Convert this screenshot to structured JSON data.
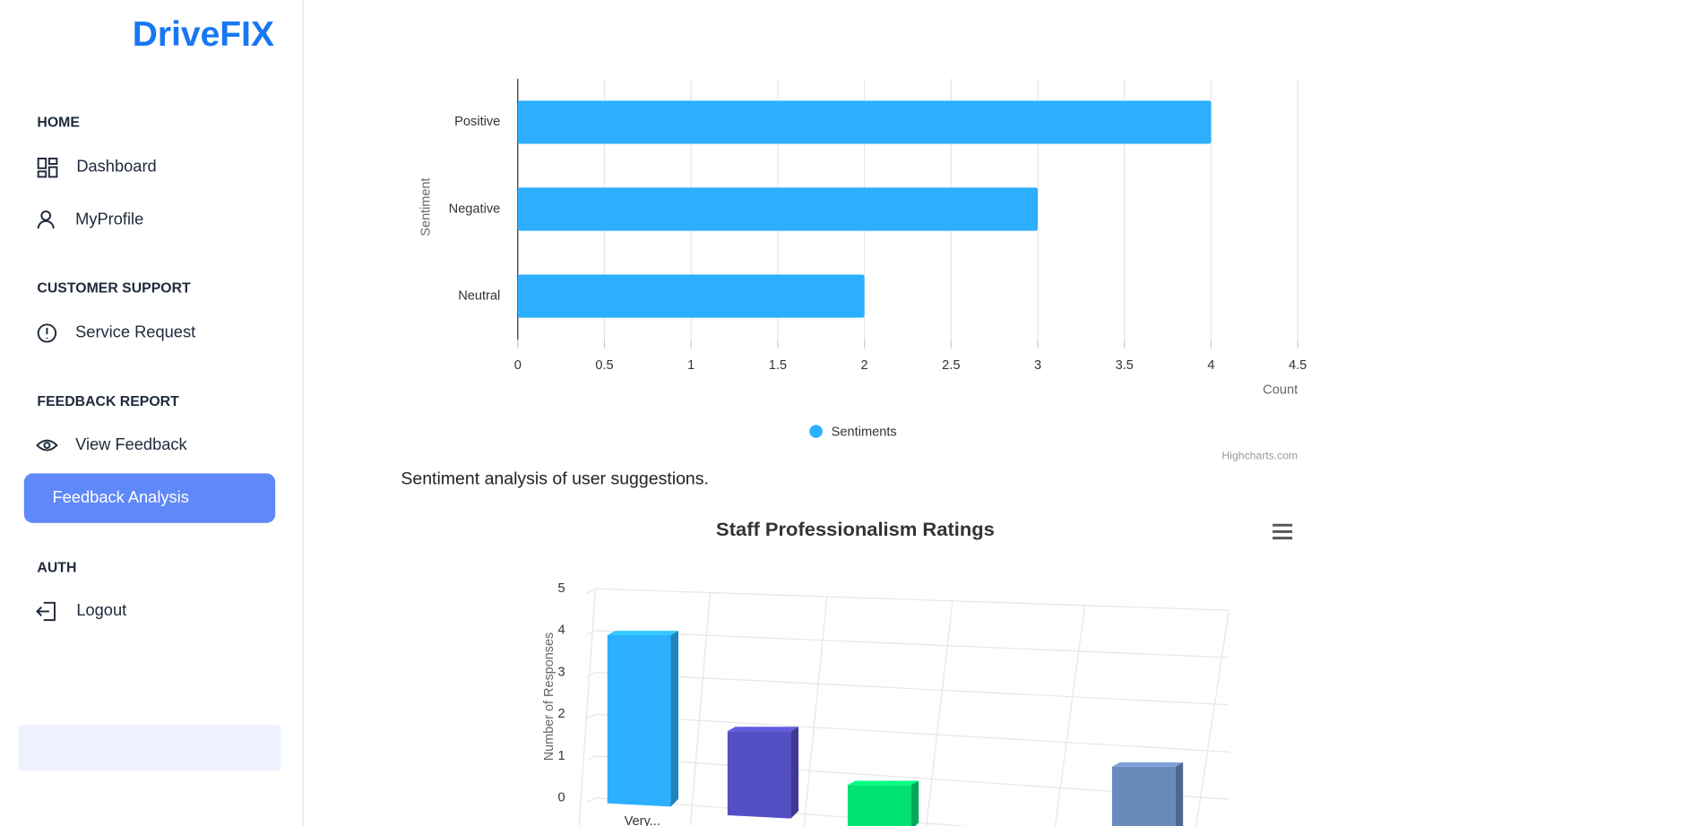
{
  "sidebar": {
    "logo": "DriveFIX",
    "sections": [
      {
        "heading": "HOME",
        "items": [
          "Dashboard",
          "MyProfile"
        ]
      },
      {
        "heading": "CUSTOMER SUPPORT",
        "items": [
          "Service Request"
        ]
      },
      {
        "heading": "FEEDBACK REPORT",
        "items": [
          "View Feedback",
          "Feedback Analysis"
        ]
      },
      {
        "heading": "AUTH",
        "items": [
          "Logout"
        ]
      }
    ]
  },
  "caption": "Sentiment analysis of user suggestions.",
  "chart_data": [
    {
      "type": "hbar",
      "categories": [
        "Positive",
        "Negative",
        "Neutral"
      ],
      "values": [
        4,
        3,
        2
      ],
      "color": "#2caffe",
      "xlim": [
        0,
        4.5
      ],
      "xticks": [
        0,
        0.5,
        1,
        1.5,
        2,
        2.5,
        3,
        3.5,
        4,
        4.5
      ],
      "x_label": "Count",
      "y_label": "Sentiment",
      "legend": "Sentiments",
      "credit": "Highcharts.com",
      "grid": true
    },
    {
      "type": "column3d",
      "title": "Staff Professionalism Ratings",
      "categories": [
        "Very...",
        null,
        null,
        null,
        null
      ],
      "values": [
        4,
        2,
        1,
        0,
        2
      ],
      "colors": [
        "#2caffe",
        "#544fc5",
        "#00e272",
        "#fe6a35",
        "#6b8abc"
      ],
      "ylim": [
        0,
        5
      ],
      "yticks": [
        0,
        1,
        2,
        3,
        4,
        5
      ],
      "y_label": "Number of Responses",
      "grid": true
    }
  ]
}
